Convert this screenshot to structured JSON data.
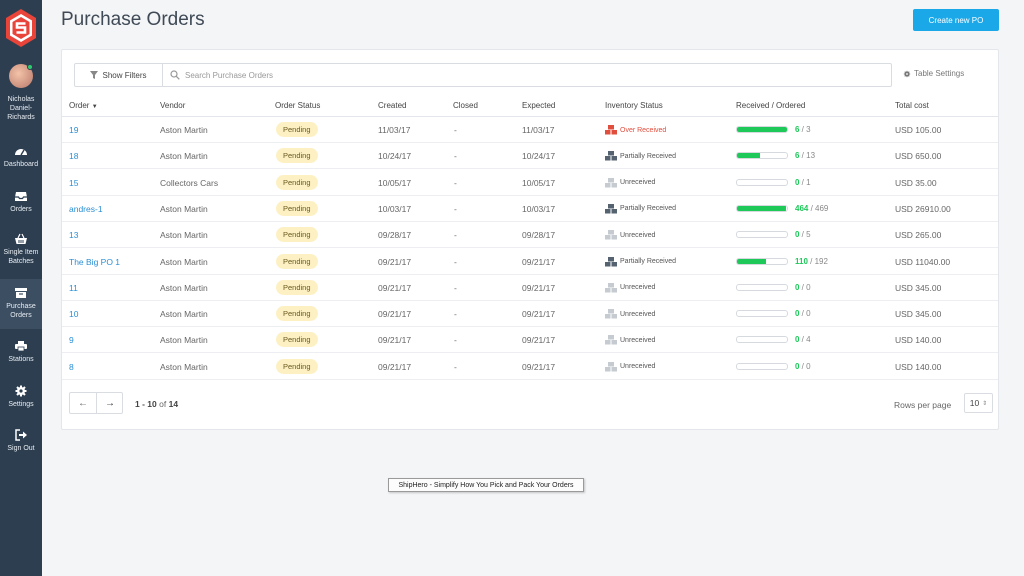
{
  "sidebar": {
    "user_name": "Nicholas Daniel-Richards",
    "items": [
      {
        "key": "dashboard",
        "label": "Dashboard",
        "icon": "gauge-icon",
        "active": false
      },
      {
        "key": "orders",
        "label": "Orders",
        "icon": "inbox-icon",
        "active": false
      },
      {
        "key": "single-item-batches",
        "label": "Single Item Batches",
        "icon": "basket-icon",
        "active": false
      },
      {
        "key": "purchase-orders",
        "label": "Purchase Orders",
        "icon": "archive-icon",
        "active": true
      },
      {
        "key": "stations",
        "label": "Stations",
        "icon": "printer-icon",
        "active": false
      },
      {
        "key": "settings",
        "label": "Settings",
        "icon": "gear-icon",
        "active": false
      },
      {
        "key": "sign-out",
        "label": "Sign Out",
        "icon": "sign-out-icon",
        "active": false
      }
    ]
  },
  "header": {
    "title": "Purchase Orders",
    "create_label": "Create new PO"
  },
  "toolbar": {
    "show_filters_label": "Show Filters",
    "search_placeholder": "Search Purchase Orders",
    "table_settings_label": "Table Settings"
  },
  "table": {
    "columns": {
      "order": "Order",
      "vendor": "Vendor",
      "order_status": "Order Status",
      "created": "Created",
      "closed": "Closed",
      "expected": "Expected",
      "inventory_status": "Inventory Status",
      "received_ordered": "Received / Ordered",
      "total_cost": "Total cost"
    },
    "rows": [
      {
        "order": "19",
        "vendor": "Aston Martin",
        "status": "Pending",
        "created": "11/03/17",
        "closed": "-",
        "expected": "11/03/17",
        "inventory": "Over Received",
        "inventory_state": "over",
        "received": 6,
        "ordered": 3,
        "total": "USD 105.00"
      },
      {
        "order": "18",
        "vendor": "Aston Martin",
        "status": "Pending",
        "created": "10/24/17",
        "closed": "-",
        "expected": "10/24/17",
        "inventory": "Partially Received",
        "inventory_state": "partial",
        "received": 6,
        "ordered": 13,
        "total": "USD 650.00"
      },
      {
        "order": "15",
        "vendor": "Collectors Cars",
        "status": "Pending",
        "created": "10/05/17",
        "closed": "-",
        "expected": "10/05/17",
        "inventory": "Unreceived",
        "inventory_state": "none",
        "received": 0,
        "ordered": 1,
        "total": "USD 35.00"
      },
      {
        "order": "andres-1",
        "vendor": "Aston Martin",
        "status": "Pending",
        "created": "10/03/17",
        "closed": "-",
        "expected": "10/03/17",
        "inventory": "Partially Received",
        "inventory_state": "partial",
        "received": 464,
        "ordered": 469,
        "total": "USD 26910.00"
      },
      {
        "order": "13",
        "vendor": "Aston Martin",
        "status": "Pending",
        "created": "09/28/17",
        "closed": "-",
        "expected": "09/28/17",
        "inventory": "Unreceived",
        "inventory_state": "none",
        "received": 0,
        "ordered": 5,
        "total": "USD 265.00"
      },
      {
        "order": "The Big PO 1",
        "vendor": "Aston Martin",
        "status": "Pending",
        "created": "09/21/17",
        "closed": "-",
        "expected": "09/21/17",
        "inventory": "Partially Received",
        "inventory_state": "partial",
        "received": 110,
        "ordered": 192,
        "total": "USD 11040.00"
      },
      {
        "order": "11",
        "vendor": "Aston Martin",
        "status": "Pending",
        "created": "09/21/17",
        "closed": "-",
        "expected": "09/21/17",
        "inventory": "Unreceived",
        "inventory_state": "none",
        "received": 0,
        "ordered": 0,
        "total": "USD 345.00"
      },
      {
        "order": "10",
        "vendor": "Aston Martin",
        "status": "Pending",
        "created": "09/21/17",
        "closed": "-",
        "expected": "09/21/17",
        "inventory": "Unreceived",
        "inventory_state": "none",
        "received": 0,
        "ordered": 0,
        "total": "USD 345.00"
      },
      {
        "order": "9",
        "vendor": "Aston Martin",
        "status": "Pending",
        "created": "09/21/17",
        "closed": "-",
        "expected": "09/21/17",
        "inventory": "Unreceived",
        "inventory_state": "none",
        "received": 0,
        "ordered": 4,
        "total": "USD 140.00"
      },
      {
        "order": "8",
        "vendor": "Aston Martin",
        "status": "Pending",
        "created": "09/21/17",
        "closed": "-",
        "expected": "09/21/17",
        "inventory": "Unreceived",
        "inventory_state": "none",
        "received": 0,
        "ordered": 0,
        "total": "USD 140.00"
      }
    ]
  },
  "pagination": {
    "range": "1 - 10",
    "of_label": "of",
    "total": "14",
    "rows_per_page_label": "Rows per page",
    "rows_per_page_value": "10"
  },
  "tooltip": "ShipHero - Simplify How You Pick and Pack Your Orders",
  "colors": {
    "sidebar": "#2d3e50",
    "accent": "#1ba8e8",
    "link": "#2a8fd4",
    "progress": "#1ec95a",
    "over": "#e04f3e",
    "badge": "#fdf1c4"
  }
}
